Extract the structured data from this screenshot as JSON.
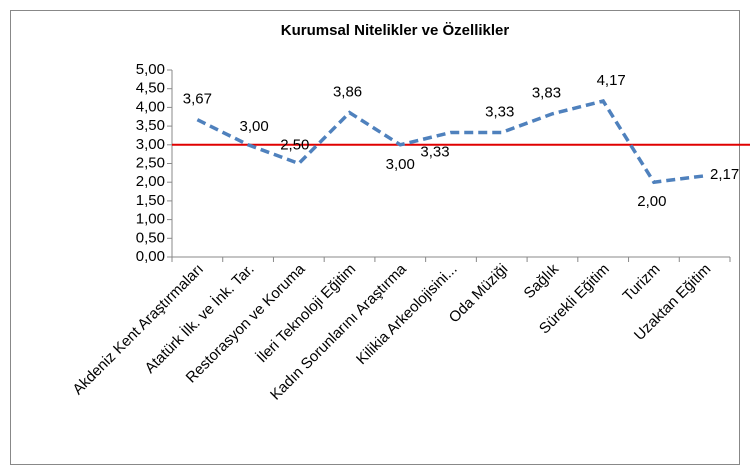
{
  "chart_data": {
    "type": "line",
    "title": "Kurumsal Nitelikler ve Özellikler",
    "categories": [
      "Akdeniz Kent Araştırmaları",
      "Atatürk İlk. ve İnk. Tar.",
      "Restorasyon ve Koruma",
      "İleri Teknoloji Eğitim",
      "Kadın Sorunlarını Araştırma",
      "Kilikia Arkeolojisini...",
      "Oda Müziği",
      "Sağlık",
      "Sürekli Eğitim",
      "Turizm",
      "Uzaktan Eğitim"
    ],
    "series": [
      {
        "name": "Kurumsal Nitelikler ve Özellikler",
        "color": "#4f81bd",
        "values": [
          3.67,
          3.0,
          2.5,
          3.86,
          3.0,
          3.33,
          3.33,
          3.83,
          4.17,
          2.0,
          2.17
        ],
        "value_labels": [
          "3,67",
          "3,00",
          "2,50",
          "3,86",
          "3,00",
          "3,33",
          "3,33",
          "3,83",
          "4,17",
          "2,00",
          "2,17"
        ]
      }
    ],
    "ylim": [
      0,
      5
    ],
    "yticks": [
      {
        "value": 0,
        "label": "0,00"
      },
      {
        "value": 0.5,
        "label": "0,50"
      },
      {
        "value": 1,
        "label": "1,00"
      },
      {
        "value": 1.5,
        "label": "1,50"
      },
      {
        "value": 2,
        "label": "2,00"
      },
      {
        "value": 2.5,
        "label": "2,50"
      },
      {
        "value": 3,
        "label": "3,00"
      },
      {
        "value": 3.5,
        "label": "3,50"
      },
      {
        "value": 4,
        "label": "4,00"
      },
      {
        "value": 4.5,
        "label": "4,50"
      },
      {
        "value": 5,
        "label": "5,00"
      }
    ],
    "reference_line": {
      "value": 3,
      "color": "#e00000"
    },
    "grid": false,
    "line_style": "dashed"
  }
}
